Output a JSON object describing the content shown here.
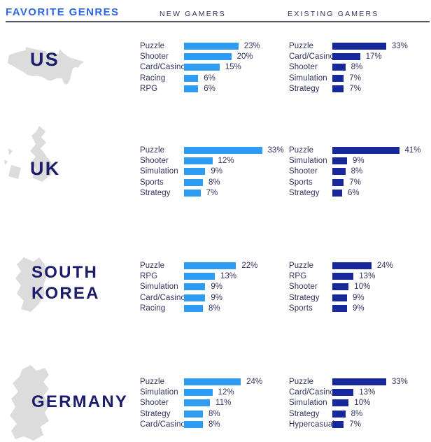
{
  "page": {
    "title": "FAVORITE GENRES"
  },
  "columns": {
    "new": "NEW GAMERS",
    "existing": "EXISTING GAMERS"
  },
  "colors": {
    "title_blue": "#2B66E3",
    "text_navy": "#31335F",
    "country_navy": "#1B1C6B",
    "new_bar_blue": "#2E9CF3",
    "existing_bar_navy": "#17289D",
    "map_gray": "#DCDCDC",
    "divider_gray": "#56565F"
  },
  "chart_data": {
    "type": "bar",
    "orientation": "horizontal",
    "title": "FAVORITE GENRES",
    "value_unit": "%",
    "series_names": [
      "NEW GAMERS",
      "EXISTING GAMERS"
    ],
    "legend_position": "top",
    "grid": false,
    "groups": [
      {
        "region": "US",
        "region_lines": [
          "US"
        ],
        "map_icon": "us-map-icon",
        "new_gamers": [
          {
            "genre": "Puzzle",
            "value": 23,
            "text": "23%"
          },
          {
            "genre": "Shooter",
            "value": 20,
            "text": "20%"
          },
          {
            "genre": "Card/Casino",
            "value": 15,
            "text": "15%"
          },
          {
            "genre": "Racing",
            "value": 6,
            "text": "6%"
          },
          {
            "genre": "RPG",
            "value": 6,
            "text": "6%"
          }
        ],
        "existing_gamers": [
          {
            "genre": "Puzzle",
            "value": 33,
            "text": "33%"
          },
          {
            "genre": "Card/Casino",
            "value": 17,
            "text": "17%"
          },
          {
            "genre": "Shooter",
            "value": 8,
            "text": "8%"
          },
          {
            "genre": "Simulation",
            "value": 7,
            "text": "7%"
          },
          {
            "genre": "Strategy",
            "value": 7,
            "text": "7%"
          }
        ]
      },
      {
        "region": "UK",
        "region_lines": [
          "UK"
        ],
        "map_icon": "uk-map-icon",
        "new_gamers": [
          {
            "genre": "Puzzle",
            "value": 33,
            "text": "33%"
          },
          {
            "genre": "Shooter",
            "value": 12,
            "text": "12%"
          },
          {
            "genre": "Simulation",
            "value": 9,
            "text": "9%"
          },
          {
            "genre": "Sports",
            "value": 8,
            "text": "8%"
          },
          {
            "genre": "Strategy",
            "value": 7,
            "text": "7%"
          }
        ],
        "existing_gamers": [
          {
            "genre": "Puzzle",
            "value": 41,
            "text": "41%"
          },
          {
            "genre": "Simulation",
            "value": 9,
            "text": "9%"
          },
          {
            "genre": "Shooter",
            "value": 8,
            "text": "8%"
          },
          {
            "genre": "Sports",
            "value": 7,
            "text": "7%"
          },
          {
            "genre": "Strategy",
            "value": 6,
            "text": "6%"
          }
        ]
      },
      {
        "region": "SOUTH KOREA",
        "region_lines": [
          "SOUTH",
          "KOREA"
        ],
        "map_icon": "south-korea-map-icon",
        "new_gamers": [
          {
            "genre": "Puzzle",
            "value": 22,
            "text": "22%"
          },
          {
            "genre": "RPG",
            "value": 13,
            "text": "13%"
          },
          {
            "genre": "Simulation",
            "value": 9,
            "text": "9%"
          },
          {
            "genre": "Card/Casino",
            "value": 9,
            "text": "9%"
          },
          {
            "genre": "Racing",
            "value": 8,
            "text": "8%"
          }
        ],
        "existing_gamers": [
          {
            "genre": "Puzzle",
            "value": 24,
            "text": "24%"
          },
          {
            "genre": "RPG",
            "value": 13,
            "text": "13%"
          },
          {
            "genre": "Shooter",
            "value": 10,
            "text": "10%"
          },
          {
            "genre": "Strategy",
            "value": 9,
            "text": "9%"
          },
          {
            "genre": "Sports",
            "value": 9,
            "text": "9%"
          }
        ]
      },
      {
        "region": "GERMANY",
        "region_lines": [
          "GERMANY"
        ],
        "map_icon": "germany-map-icon",
        "new_gamers": [
          {
            "genre": "Puzzle",
            "value": 24,
            "text": "24%"
          },
          {
            "genre": "Simulation",
            "value": 12,
            "text": "12%"
          },
          {
            "genre": "Shooter",
            "value": 11,
            "text": "11%"
          },
          {
            "genre": "Strategy",
            "value": 8,
            "text": "8%"
          },
          {
            "genre": "Card/Casino",
            "value": 8,
            "text": "8%"
          }
        ],
        "existing_gamers": [
          {
            "genre": "Puzzle",
            "value": 33,
            "text": "33%"
          },
          {
            "genre": "Card/Casino",
            "value": 13,
            "text": "13%"
          },
          {
            "genre": "Simulation",
            "value": 10,
            "text": "10%"
          },
          {
            "genre": "Strategy",
            "value": 8,
            "text": "8%"
          },
          {
            "genre": "Hypercasual",
            "value": 7,
            "text": "7%"
          }
        ]
      }
    ]
  }
}
